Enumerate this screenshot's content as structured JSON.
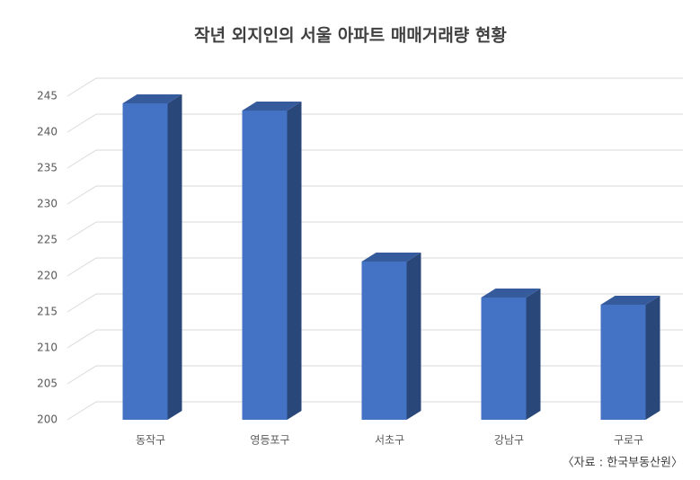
{
  "chart_data": {
    "type": "bar3d",
    "title": "작년 외지인의 서울 아파트 매매거래량 현황",
    "categories": [
      "동작구",
      "영등포구",
      "서초구",
      "강남구",
      "구로구"
    ],
    "values": [
      244,
      243,
      222,
      217,
      216
    ],
    "color": "#4472c4",
    "ylim": [
      200,
      245
    ],
    "yticks": [
      200,
      205,
      210,
      215,
      220,
      225,
      230,
      235,
      240,
      245
    ],
    "grid": true,
    "source": "〈자료 : 한국부동산원〉"
  }
}
